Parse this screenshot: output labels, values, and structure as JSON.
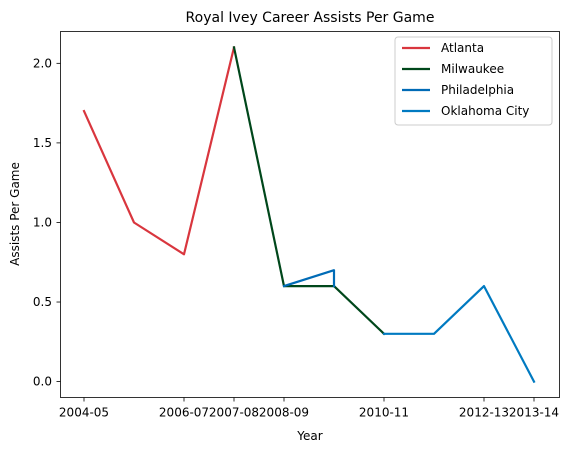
{
  "chart_data": {
    "type": "line",
    "title": "Royal Ivey Career Assists Per Game",
    "xlabel": "Year",
    "ylabel": "Assists Per Game",
    "x_categories": [
      "2004-05",
      "2005-06",
      "2006-07",
      "2007-08",
      "2008-09",
      "2009-10",
      "2010-11",
      "2011-12",
      "2012-13",
      "2013-14"
    ],
    "x_tick_labels": [
      "2004-05",
      "2006-07",
      "2007-08",
      "2008-09",
      "2010-11",
      "2012-13",
      "2013-14"
    ],
    "ylim": [
      -0.1,
      2.2
    ],
    "yticks": [
      "0.0",
      "0.5",
      "1.0",
      "1.5",
      "2.0"
    ],
    "legend_position": "top-right",
    "grid": false,
    "series": [
      {
        "name": "Atlanta",
        "color": "#d9363e",
        "points": [
          {
            "x": "2004-05",
            "y": 1.7
          },
          {
            "x": "2005-06",
            "y": 1.0
          },
          {
            "x": "2006-07",
            "y": 0.8
          },
          {
            "x": "2007-08",
            "y": 2.1
          }
        ]
      },
      {
        "name": "Milwaukee",
        "color": "#00471b",
        "points": [
          {
            "x": "2007-08",
            "y": 2.1
          },
          {
            "x": "2008-09",
            "y": 0.6
          },
          {
            "x": "2009-10",
            "y": 0.6
          },
          {
            "x": "2010-11",
            "y": 0.3
          }
        ]
      },
      {
        "name": "Philadelphia",
        "color": "#006bb6",
        "points": [
          {
            "x": "2008-09",
            "y": 0.6
          },
          {
            "x": "2009-10",
            "y": 0.7
          },
          {
            "x": "2009-10",
            "y": 0.6
          }
        ]
      },
      {
        "name": "Oklahoma City",
        "color": "#007ac1",
        "points": [
          {
            "x": "2010-11",
            "y": 0.3
          },
          {
            "x": "2011-12",
            "y": 0.3
          },
          {
            "x": "2012-13",
            "y": 0.6
          },
          {
            "x": "2013-14",
            "y": 0.0
          }
        ]
      }
    ]
  }
}
